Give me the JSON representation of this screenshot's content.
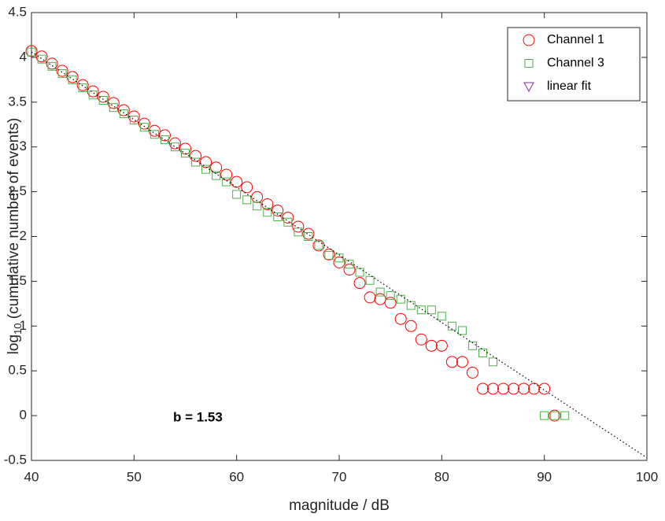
{
  "chart_data": {
    "type": "scatter",
    "xlabel": "magnitude / dB",
    "ylabel": {
      "base": "log",
      "subscript": "10",
      "rest": " (cumulative number of events)"
    },
    "annotation": "b = 1.53",
    "xlim": [
      40,
      100
    ],
    "ylim": [
      -0.5,
      4.5
    ],
    "xticks": [
      40,
      50,
      60,
      70,
      80,
      90,
      100
    ],
    "yticks": [
      -0.5,
      0,
      0.5,
      1,
      1.5,
      2,
      2.5,
      3,
      3.5,
      4,
      4.5
    ],
    "grid": false,
    "legend": "upper right",
    "series": [
      {
        "name": "Channel 1",
        "color": "#ff0000",
        "marker": "circle",
        "x": [
          40,
          41,
          42,
          43,
          44,
          45,
          46,
          47,
          48,
          49,
          50,
          51,
          52,
          53,
          54,
          55,
          56,
          57,
          58,
          59,
          60,
          61,
          62,
          63,
          64,
          65,
          66,
          67,
          68,
          69,
          70,
          71,
          72,
          73,
          74,
          75,
          76,
          77,
          78,
          79,
          80,
          81,
          82,
          83,
          84,
          85,
          86,
          87,
          88,
          89,
          90,
          91
        ],
        "values": [
          4.07,
          4.01,
          3.93,
          3.85,
          3.78,
          3.69,
          3.62,
          3.56,
          3.49,
          3.41,
          3.34,
          3.26,
          3.18,
          3.13,
          3.04,
          2.98,
          2.9,
          2.83,
          2.77,
          2.69,
          2.61,
          2.55,
          2.44,
          2.36,
          2.29,
          2.21,
          2.11,
          2.03,
          1.9,
          1.8,
          1.71,
          1.63,
          1.48,
          1.32,
          1.3,
          1.26,
          1.08,
          1.0,
          0.85,
          0.78,
          0.78,
          0.6,
          0.6,
          0.48,
          0.3,
          0.3,
          0.3,
          0.3,
          0.3,
          0.3,
          0.3,
          0.0
        ]
      },
      {
        "name": "Channel 3",
        "color": "#4daf4a",
        "marker": "square",
        "x": [
          40,
          41,
          42,
          43,
          44,
          45,
          46,
          47,
          48,
          49,
          50,
          51,
          52,
          53,
          54,
          55,
          56,
          57,
          58,
          59,
          60,
          61,
          62,
          63,
          64,
          65,
          66,
          67,
          68,
          69,
          70,
          71,
          72,
          73,
          74,
          75,
          76,
          77,
          78,
          79,
          80,
          81,
          82,
          83,
          84,
          85,
          90,
          91,
          92
        ],
        "values": [
          4.06,
          3.98,
          3.9,
          3.82,
          3.75,
          3.66,
          3.58,
          3.52,
          3.44,
          3.37,
          3.3,
          3.22,
          3.14,
          3.08,
          3.0,
          2.93,
          2.83,
          2.75,
          2.68,
          2.61,
          2.47,
          2.41,
          2.34,
          2.27,
          2.22,
          2.16,
          2.05,
          2.0,
          1.9,
          1.79,
          1.76,
          1.69,
          1.6,
          1.51,
          1.38,
          1.34,
          1.3,
          1.23,
          1.18,
          1.18,
          1.11,
          1.0,
          0.95,
          0.78,
          0.7,
          0.6,
          0.0,
          0.0,
          0.0
        ]
      },
      {
        "name": "linear fit",
        "color": "#7e2f8e",
        "marker": "triangle",
        "line": "dotted",
        "line_color": "#000000",
        "x": [
          40,
          100
        ],
        "values": [
          4.06,
          -0.47
        ]
      }
    ]
  }
}
